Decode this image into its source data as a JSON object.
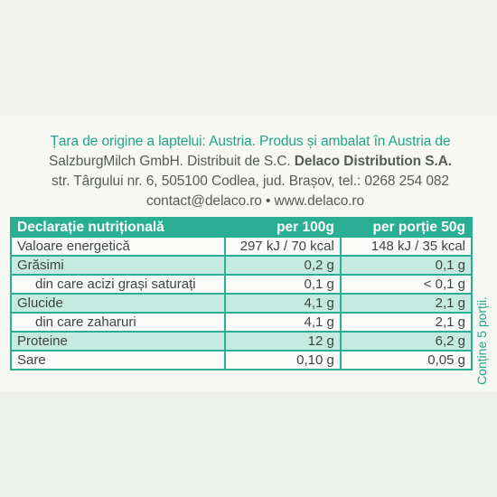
{
  "intro": {
    "line1": "Țara de origine a laptelui: Austria. Produs și ambalat în Austria de",
    "line2a": "SalzburgMilch GmbH. Distribuit de S.C.",
    "line2b": "Delaco Distribution S.A.",
    "line3": "str. Târgului nr. 6, 505100 Codlea, jud. Brașov, tel.: 0268 254 082",
    "line4": "contact@delaco.ro • www.delaco.ro"
  },
  "table": {
    "headers": [
      "Declarație nutrițională",
      "per 100g",
      "per porție 50g"
    ],
    "rows": [
      {
        "name": "Valoare energetică",
        "per100": "297 kJ / 70 kcal",
        "portion": "148 kJ / 35 kcal"
      },
      {
        "name": "Grăsimi",
        "per100": "0,2 g",
        "portion": "0,1 g"
      },
      {
        "name": "din care acizi grași saturați",
        "per100": "0,1 g",
        "portion": "< 0,1 g"
      },
      {
        "name": "Glucide",
        "per100": "4,1 g",
        "portion": "2,1 g"
      },
      {
        "name": "din care zaharuri",
        "per100": "4,1 g",
        "portion": "2,1 g"
      },
      {
        "name": "Proteine",
        "per100": "12 g",
        "portion": "6,2 g"
      },
      {
        "name": "Sare",
        "per100": "0,10 g",
        "portion": "0,05 g"
      }
    ]
  },
  "side_note": "Conține 5 porții.",
  "colors": {
    "accent": "#2aae94",
    "text": "#3d4542",
    "shade": "#c5ebe0"
  }
}
